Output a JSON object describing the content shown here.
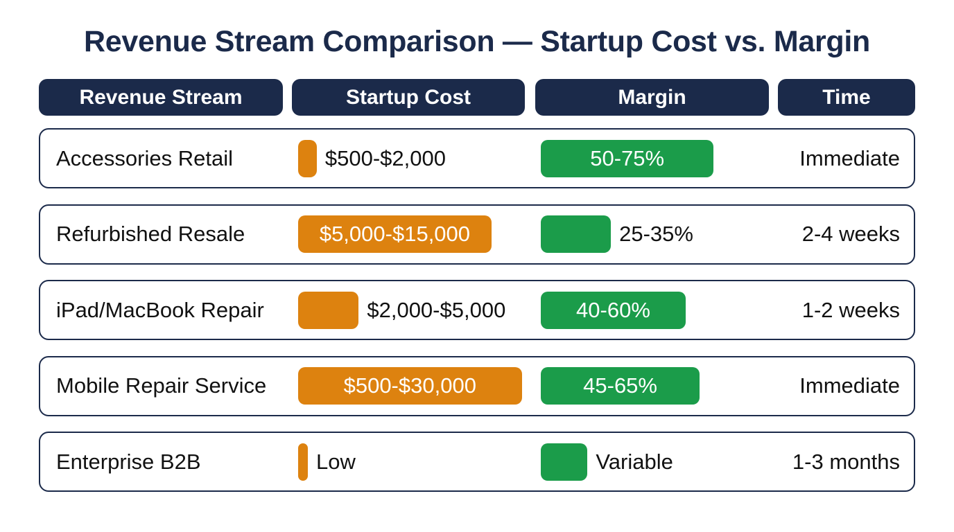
{
  "title": "Revenue Stream Comparison — Startup Cost vs. Margin",
  "headers": {
    "stream": "Revenue Stream",
    "cost": "Startup Cost",
    "margin": "Margin",
    "time": "Time"
  },
  "colors": {
    "header_bg": "#1b2a4a",
    "cost_bar": "#dd820f",
    "margin_bar": "#1b9c4a"
  },
  "chart_data": {
    "type": "table",
    "title": "Revenue Stream Comparison — Startup Cost vs. Margin",
    "columns": [
      "Revenue Stream",
      "Startup Cost",
      "Margin",
      "Time"
    ],
    "rows": [
      {
        "stream": "Accessories Retail",
        "cost_label": "$500-$2,000",
        "cost_level": 0.08,
        "margin_label": "50-75%",
        "margin_level": 0.74,
        "time": "Immediate"
      },
      {
        "stream": "Refurbished Resale",
        "cost_label": "$5,000-$15,000",
        "cost_level": 0.83,
        "margin_label": "25-35%",
        "margin_level": 0.3,
        "time": "2-4 weeks"
      },
      {
        "stream": "iPad/MacBook Repair",
        "cost_label": "$2,000-$5,000",
        "cost_level": 0.26,
        "margin_label": "40-60%",
        "margin_level": 0.62,
        "time": "1-2 weeks"
      },
      {
        "stream": "Mobile Repair Service",
        "cost_label": "$500-$30,000",
        "cost_level": 0.96,
        "margin_label": "45-65%",
        "margin_level": 0.68,
        "time": "Immediate"
      },
      {
        "stream": "Enterprise B2B",
        "cost_label": "Low",
        "cost_level": 0.04,
        "margin_label": "Variable",
        "margin_level": 0.2,
        "time": "1-3 months"
      }
    ]
  }
}
